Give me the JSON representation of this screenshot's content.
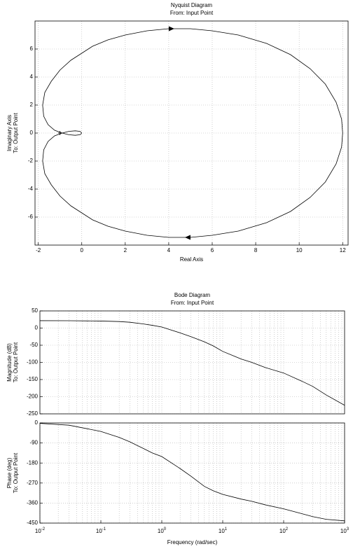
{
  "chart_data": [
    {
      "type": "line",
      "title": "Nyquist Diagram",
      "subtitle": "From: Input Point",
      "xlabel": "Real Axis",
      "ylabel": [
        "Imaginary Axis",
        "To: Output Point"
      ],
      "xlim": [
        -2.15,
        12.25
      ],
      "ylim": [
        -8,
        8
      ],
      "xticks": [
        -2,
        0,
        2,
        4,
        6,
        8,
        10,
        12
      ],
      "yticks": [
        -6,
        -4,
        -2,
        0,
        2,
        4,
        6
      ],
      "grid": true,
      "critical_point": {
        "x": -1,
        "y": 0
      },
      "series": [
        {
          "color": "#000000",
          "x": [
            0,
            -0.08,
            -0.3,
            -0.6,
            -0.9,
            -1.25,
            -1.55,
            -1.75,
            -1.8,
            -1.7,
            -1.4,
            -1,
            -0.5,
            0,
            0.5,
            1.2,
            2,
            3,
            4,
            5,
            6,
            7.2,
            8.5,
            9.6,
            10.5,
            11.2,
            11.7,
            11.95,
            12
          ],
          "values": [
            0,
            -0.12,
            -0.16,
            -0.12,
            0,
            0.2,
            0.6,
            1.2,
            2,
            2.9,
            3.7,
            4.5,
            5.2,
            5.7,
            6.2,
            6.65,
            7,
            7.3,
            7.45,
            7.45,
            7.3,
            7,
            6.4,
            5.6,
            4.6,
            3.5,
            2.2,
            1,
            0
          ]
        },
        {
          "color": "#000000",
          "x": [
            12,
            11.95,
            11.7,
            11.2,
            10.5,
            9.6,
            8.5,
            7.2,
            6,
            5,
            4,
            3,
            2,
            1.2,
            0.5,
            0,
            -0.5,
            -1,
            -1.4,
            -1.7,
            -1.8,
            -1.75,
            -1.55,
            -1.25,
            -0.9,
            -0.6,
            -0.3,
            -0.08,
            0
          ],
          "values": [
            0,
            -1,
            -2.2,
            -3.5,
            -4.6,
            -5.6,
            -6.4,
            -7,
            -7.3,
            -7.45,
            -7.45,
            -7.3,
            -7,
            -6.65,
            -6.2,
            -5.7,
            -5.2,
            -4.5,
            -3.7,
            -2.9,
            -2,
            -1.2,
            -0.6,
            -0.2,
            0,
            0.12,
            0.16,
            0.12,
            0
          ]
        }
      ]
    },
    {
      "type": "line",
      "title": "Bode Diagram",
      "subtitle": "From: Input Point",
      "ylabel": [
        "Magnitude (dB)",
        "To: Output Point"
      ],
      "xscale": "log",
      "xlim": [
        0.01,
        1000
      ],
      "ylim": [
        -250,
        50
      ],
      "yticks": [
        -250,
        -200,
        -150,
        -100,
        -50,
        0,
        50
      ],
      "grid": true,
      "series": [
        {
          "color": "#000000",
          "x": [
            0.01,
            0.03,
            0.1,
            0.2,
            0.3,
            0.5,
            0.7,
            1,
            2,
            3,
            5,
            7,
            10,
            20,
            30,
            50,
            100,
            200,
            300,
            500,
            1000
          ],
          "values": [
            21.6,
            21.5,
            20.5,
            19,
            17,
            12,
            8,
            3,
            -14,
            -25,
            -40,
            -52,
            -68,
            -90,
            -100,
            -115,
            -131,
            -155,
            -170,
            -195,
            -225
          ]
        }
      ]
    },
    {
      "type": "line",
      "xlabel": "Frequency (rad/sec)",
      "ylabel": [
        "Phase (deg)",
        "To: Output Point"
      ],
      "xscale": "log",
      "xlim": [
        0.01,
        1000
      ],
      "ylim": [
        -450,
        0
      ],
      "xticks": [
        {
          "value": 0.01,
          "label": "10",
          "exponent": "-2"
        },
        {
          "value": 0.1,
          "label": "10",
          "exponent": "-1"
        },
        {
          "value": 1,
          "label": "10",
          "exponent": "0"
        },
        {
          "value": 10,
          "label": "10",
          "exponent": "1"
        },
        {
          "value": 100,
          "label": "10",
          "exponent": "2"
        },
        {
          "value": 1000,
          "label": "10",
          "exponent": "3"
        }
      ],
      "yticks": [
        -450,
        -360,
        -270,
        -180,
        -90,
        0
      ],
      "grid": true,
      "series": [
        {
          "color": "#000000",
          "x": [
            0.01,
            0.03,
            0.1,
            0.2,
            0.3,
            0.5,
            0.7,
            1,
            2,
            3,
            5,
            7,
            10,
            20,
            30,
            50,
            100,
            200,
            300,
            500,
            1000
          ],
          "values": [
            -2,
            -10,
            -38,
            -65,
            -85,
            -115,
            -135,
            -151,
            -205,
            -239,
            -285,
            -305,
            -321,
            -342,
            -352,
            -368,
            -386,
            -408,
            -421,
            -433,
            -440
          ]
        }
      ]
    }
  ]
}
